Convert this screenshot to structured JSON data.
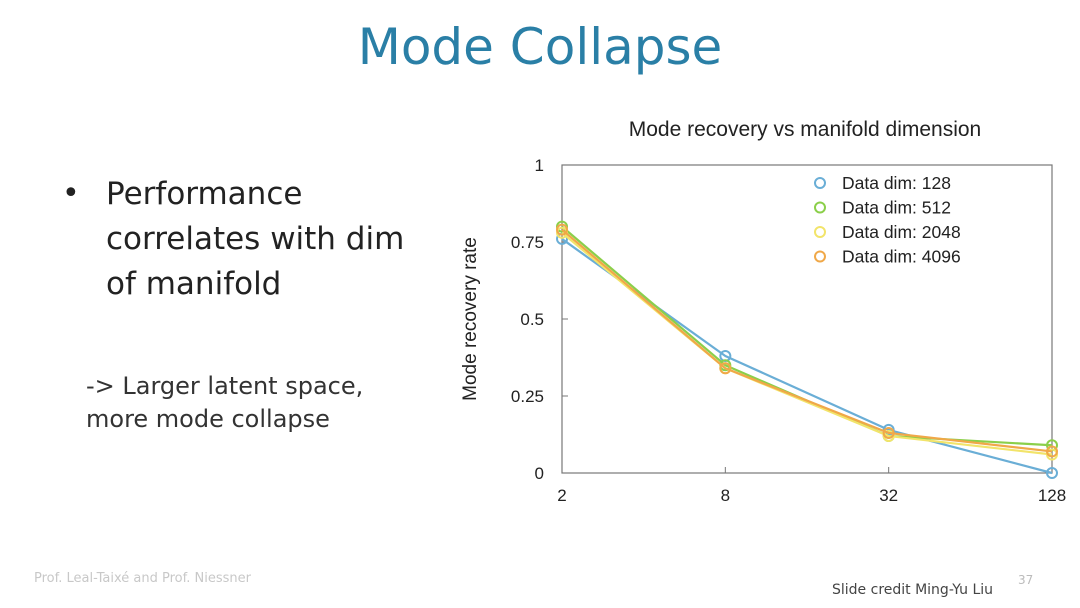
{
  "slide": {
    "title": "Mode Collapse",
    "bullet": "Performance correlates with dim of manifold",
    "note": "-> Larger latent space, more mode collapse",
    "footer_left": "Prof. Leal-Taixé and Prof. Niessner",
    "footer_right": "Slide credit Ming-Yu Liu",
    "page_number": "37"
  },
  "chart_data": {
    "type": "line",
    "title": "Mode recovery vs manifold dimension",
    "xlabel": "",
    "ylabel": "Mode recovery rate",
    "x": [
      2,
      8,
      32,
      128
    ],
    "x_tick_labels": [
      "2",
      "8",
      "32",
      "128"
    ],
    "x_scale": "log",
    "ylim": [
      0,
      1
    ],
    "y_ticks": [
      0,
      0.25,
      0.5,
      0.75,
      1
    ],
    "y_tick_labels": [
      "0",
      "0.25",
      "0.5",
      "0.75",
      "1"
    ],
    "grid": false,
    "legend_position": "top-right",
    "series": [
      {
        "name": "Data dim: 128",
        "color": "#6aaed6",
        "values": [
          0.76,
          0.38,
          0.14,
          0.0
        ]
      },
      {
        "name": "Data dim: 512",
        "color": "#8bcf4a",
        "values": [
          0.8,
          0.35,
          0.12,
          0.09
        ]
      },
      {
        "name": "Data dim: 2048",
        "color": "#f2e46a",
        "values": [
          0.78,
          0.34,
          0.12,
          0.06
        ]
      },
      {
        "name": "Data dim: 4096",
        "color": "#f0a848",
        "values": [
          0.79,
          0.34,
          0.13,
          0.07
        ]
      }
    ]
  }
}
